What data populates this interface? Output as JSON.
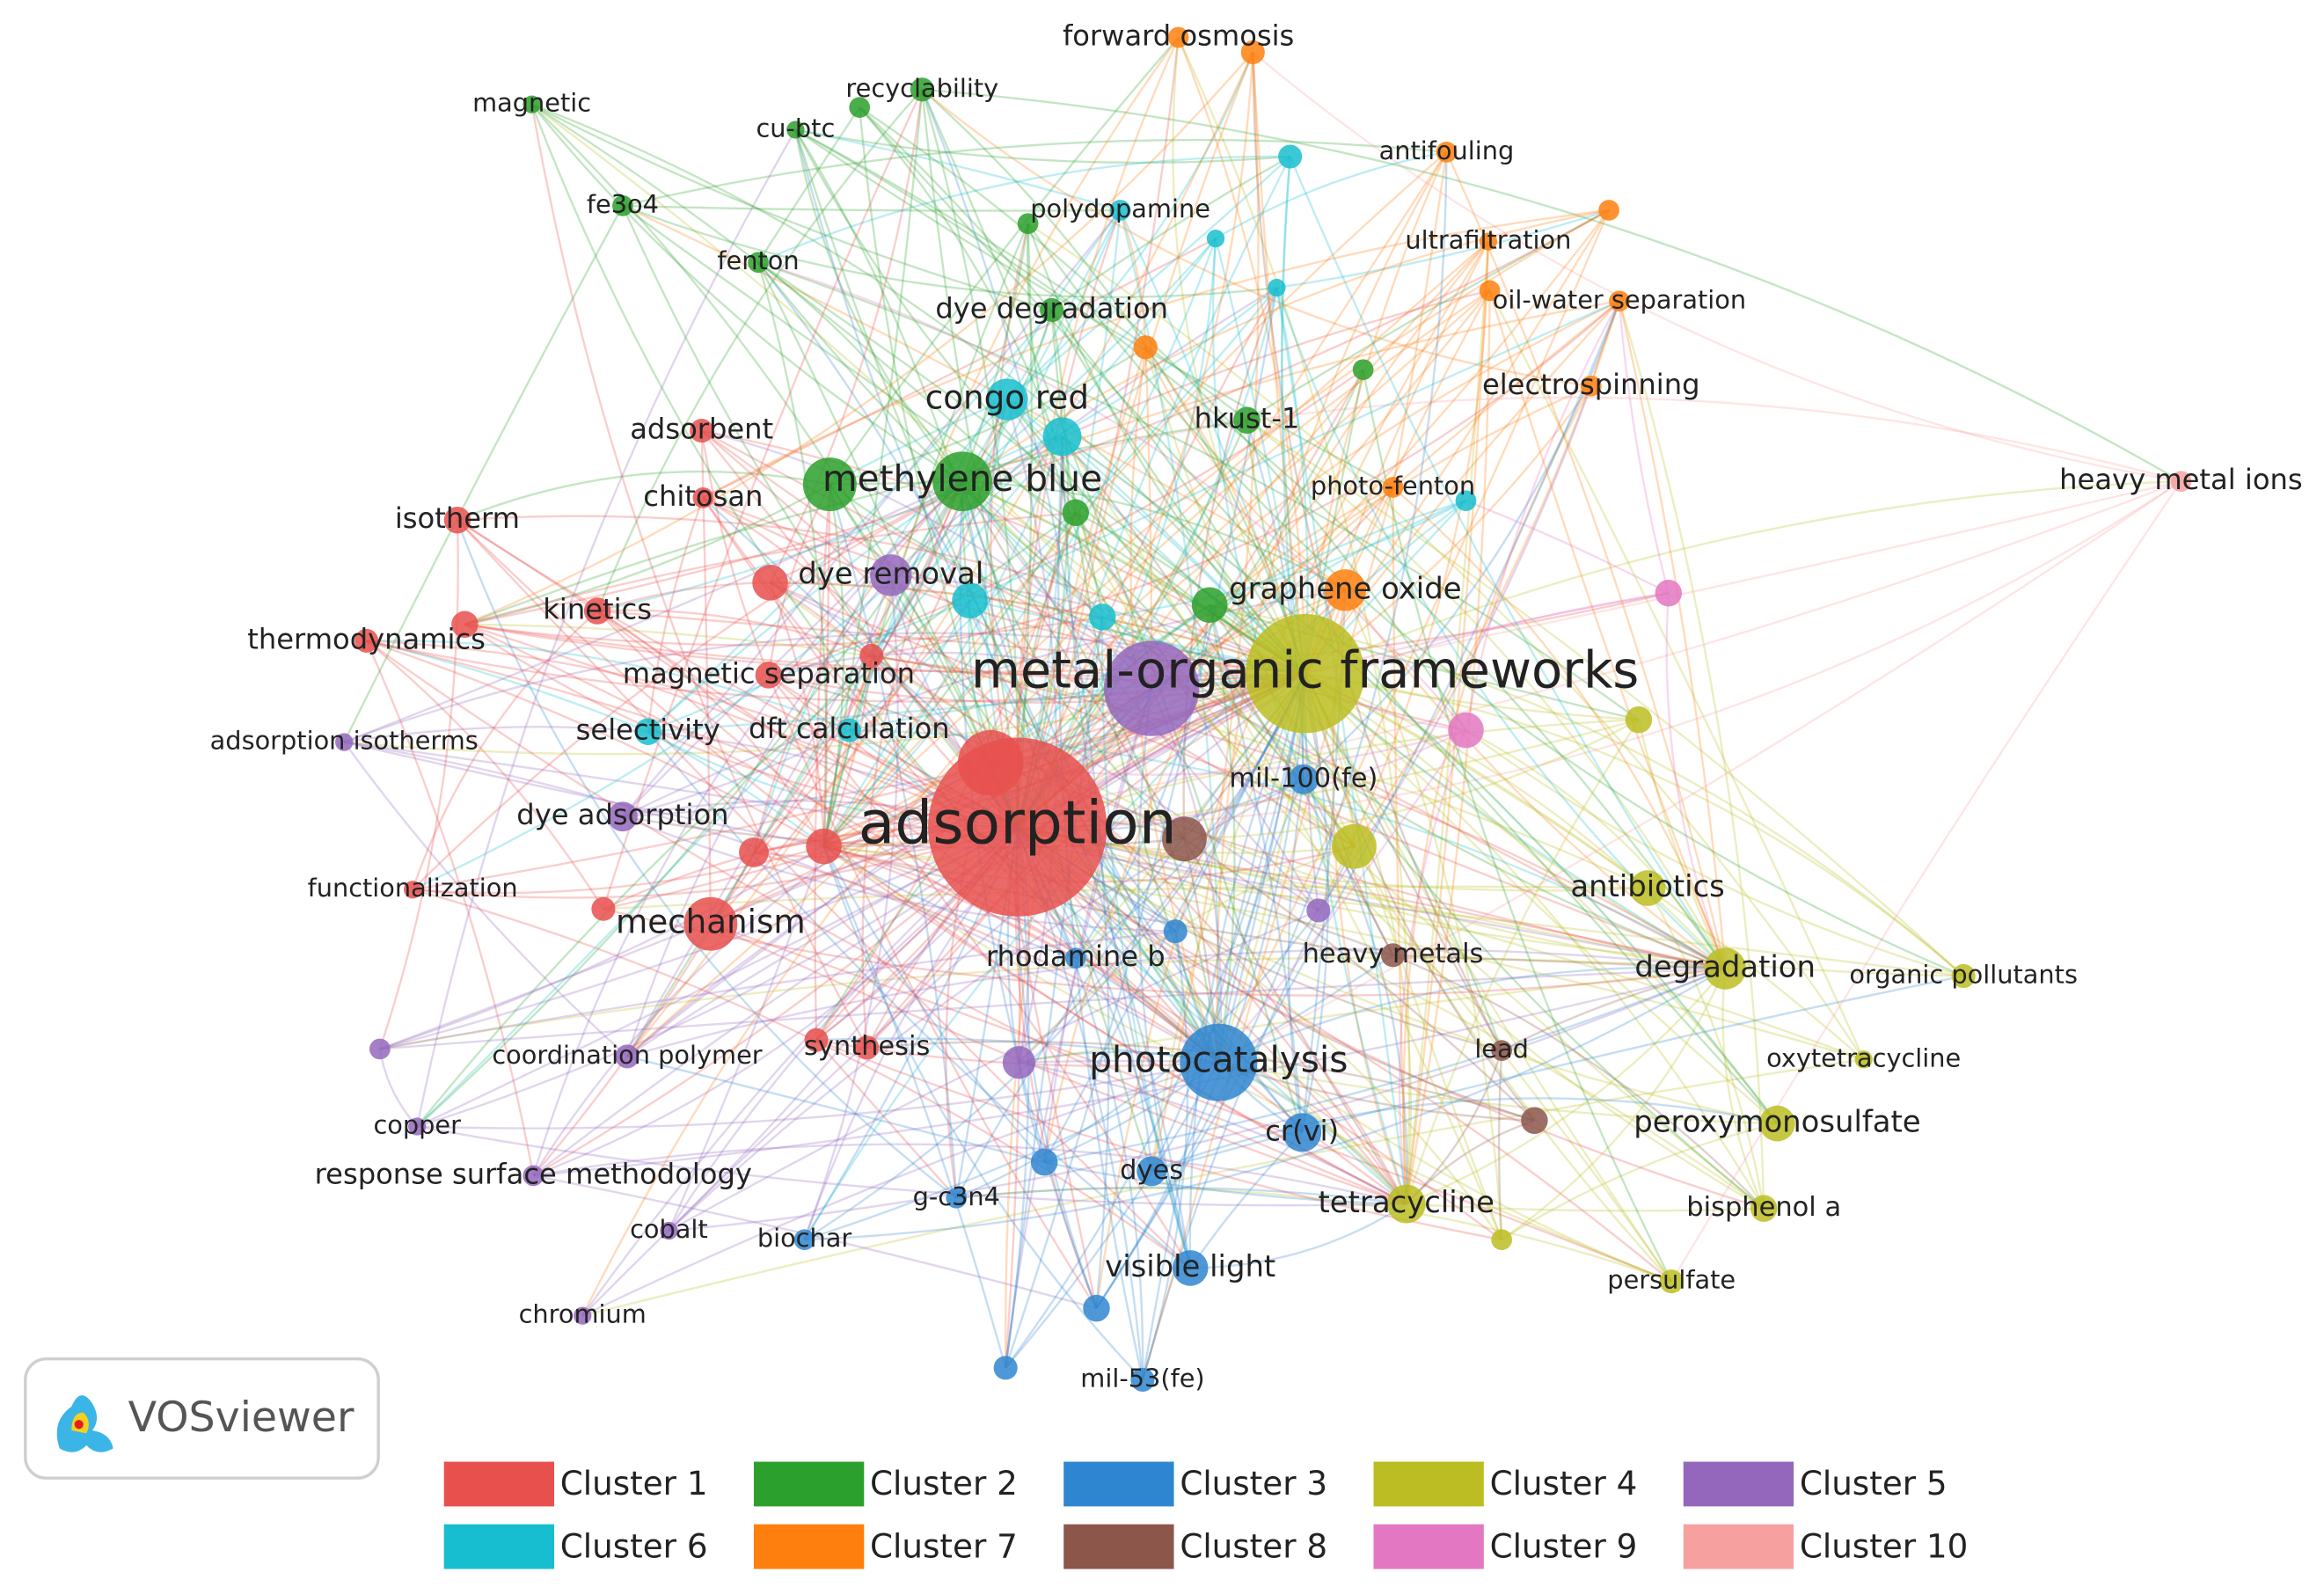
{
  "nodes": [
    {
      "label": "adsorption"
    },
    {
      "label": "metal-organic frameworks"
    },
    {
      "label": "methylene blue"
    },
    {
      "label": "congo red"
    },
    {
      "label": "dye removal"
    },
    {
      "label": "graphene oxide"
    },
    {
      "label": "photocatalysis"
    },
    {
      "label": "mechanism"
    },
    {
      "label": "antibiotics"
    },
    {
      "label": "degradation"
    },
    {
      "label": "peroxymonosulfate"
    },
    {
      "label": "tetracycline"
    },
    {
      "label": "bisphenol a"
    },
    {
      "label": "persulfate"
    },
    {
      "label": "oxytetracycline"
    },
    {
      "label": "organic pollutants"
    },
    {
      "label": "heavy metals"
    },
    {
      "label": "lead"
    },
    {
      "label": "cr(vi)"
    },
    {
      "label": "dyes"
    },
    {
      "label": "visible light"
    },
    {
      "label": "mil-53(fe)"
    },
    {
      "label": "g-c3n4"
    },
    {
      "label": "biochar"
    },
    {
      "label": "rhodamine b"
    },
    {
      "label": "mil-100(fe)"
    },
    {
      "label": "synthesis"
    },
    {
      "label": "coordination polymer"
    },
    {
      "label": "copper"
    },
    {
      "label": "response surface methodology"
    },
    {
      "label": "cobalt"
    },
    {
      "label": "chromium"
    },
    {
      "label": "functionalization"
    },
    {
      "label": "dye adsorption"
    },
    {
      "label": "adsorption isotherms"
    },
    {
      "label": "selectivity"
    },
    {
      "label": "dft calculation"
    },
    {
      "label": "magnetic separation"
    },
    {
      "label": "thermodynamics"
    },
    {
      "label": "kinetics"
    },
    {
      "label": "isotherm"
    },
    {
      "label": "chitosan"
    },
    {
      "label": "adsorbent"
    },
    {
      "label": "magnetic"
    },
    {
      "label": "cu-btc"
    },
    {
      "label": "recyclability"
    },
    {
      "label": "fe3o4"
    },
    {
      "label": "fenton"
    },
    {
      "label": "polydopamine"
    },
    {
      "label": "dye degradation"
    },
    {
      "label": "hkust-1"
    },
    {
      "label": "forward osmosis"
    },
    {
      "label": "antifouling"
    },
    {
      "label": "ultrafiltration"
    },
    {
      "label": "oil-water separation"
    },
    {
      "label": "electrospinning"
    },
    {
      "label": "photo-fenton"
    },
    {
      "label": "heavy metal ions"
    }
  ],
  "legend": [
    "Cluster 1",
    "Cluster 2",
    "Cluster 3",
    "Cluster 4",
    "Cluster 5",
    "Cluster 6",
    "Cluster 7",
    "Cluster 8",
    "Cluster 9",
    "Cluster 10"
  ],
  "logo": "VOSviewer"
}
